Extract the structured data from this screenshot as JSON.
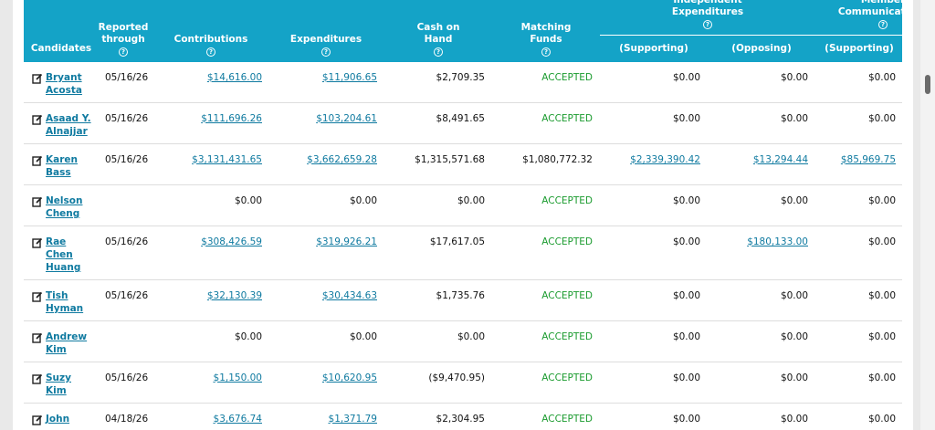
{
  "header": {
    "candidates": "Candidates",
    "reported": "Reported through",
    "contributions": "Contributions",
    "expenditures": "Expenditures",
    "cash": "Cash on Hand",
    "matching": "Matching Funds",
    "independent": "Independent Expenditures",
    "member": "Member Communications",
    "ie_supporting": "(Supporting)",
    "ie_opposing": "(Opposing)",
    "mc_supporting": "(Supporting)",
    "help": "?"
  },
  "table": {
    "rows": [
      {
        "name": [
          "Bryant",
          "Acosta"
        ],
        "cells": [
          "05/16/26",
          {
            "text": "$14,616.00",
            "link": true
          },
          {
            "text": "$11,906.65",
            "link": true
          },
          "$2,709.35",
          {
            "text": "ACCEPTED",
            "status": true
          },
          "$0.00",
          "$0.00",
          "$0.00"
        ]
      },
      {
        "name": [
          "Asaad Y.",
          "Alnajjar"
        ],
        "cells": [
          "05/16/26",
          {
            "text": "$111,696.26",
            "link": true
          },
          {
            "text": "$103,204.61",
            "link": true
          },
          "$8,491.65",
          {
            "text": "ACCEPTED",
            "status": true
          },
          "$0.00",
          "$0.00",
          "$0.00"
        ]
      },
      {
        "name": [
          "Karen",
          "Bass"
        ],
        "cells": [
          "05/16/26",
          {
            "text": "$3,131,431.65",
            "link": true
          },
          {
            "text": "$3,662,659.28",
            "link": true
          },
          "$1,315,571.68",
          "$1,080,772.32",
          {
            "text": "$2,339,390.42",
            "link": true
          },
          {
            "text": "$13,294.44",
            "link": true
          },
          {
            "text": "$85,969.75",
            "link": true
          }
        ]
      },
      {
        "name": [
          "Nelson",
          "Cheng"
        ],
        "cells": [
          null,
          "$0.00",
          "$0.00",
          "$0.00",
          {
            "text": "ACCEPTED",
            "status": true
          },
          "$0.00",
          "$0.00",
          "$0.00"
        ]
      },
      {
        "name": [
          "Rae",
          "Chen",
          "Huang"
        ],
        "cells": [
          "05/16/26",
          {
            "text": "$308,426.59",
            "link": true
          },
          {
            "text": "$319,926.21",
            "link": true
          },
          "$17,617.05",
          {
            "text": "ACCEPTED",
            "status": true
          },
          "$0.00",
          {
            "text": "$180,133.00",
            "link": true
          },
          "$0.00"
        ]
      },
      {
        "name": [
          "Tish",
          "Hyman"
        ],
        "cells": [
          "05/16/26",
          {
            "text": "$32,130.39",
            "link": true
          },
          {
            "text": "$30,434.63",
            "link": true
          },
          "$1,735.76",
          {
            "text": "ACCEPTED",
            "status": true
          },
          "$0.00",
          "$0.00",
          "$0.00"
        ]
      },
      {
        "name": [
          "Andrew",
          "Kim"
        ],
        "cells": [
          null,
          "$0.00",
          "$0.00",
          "$0.00",
          {
            "text": "ACCEPTED",
            "status": true
          },
          "$0.00",
          "$0.00",
          "$0.00"
        ]
      },
      {
        "name": [
          "Suzy",
          "Kim"
        ],
        "cells": [
          "05/16/26",
          {
            "text": "$1,150.00",
            "link": true
          },
          {
            "text": "$10,620.95",
            "link": true
          },
          "($9,470.95)",
          {
            "text": "ACCEPTED",
            "status": true
          },
          "$0.00",
          "$0.00",
          "$0.00"
        ]
      },
      {
        "name": [
          "John"
        ],
        "cells": [
          "04/18/26",
          {
            "text": "$3,676.74",
            "link": true
          },
          {
            "text": "$1,371.79",
            "link": true
          },
          "$2,304.95",
          {
            "text": "ACCEPTED",
            "status": true
          },
          "$0.00",
          "$0.00",
          "$0.00"
        ]
      }
    ]
  }
}
